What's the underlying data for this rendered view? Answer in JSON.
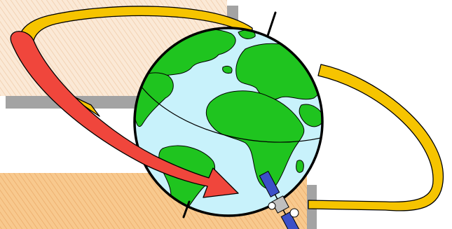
{
  "colors": {
    "background": "#ffffff",
    "panel_top": "#fbe9d6",
    "panel_top_hatch": "#efc9a6",
    "panel_bottom": "#f8c98e",
    "panel_bottom_hatch": "#eaa865",
    "panel_shadow": "#a3a3a3",
    "ocean": "#c8f2fb",
    "land": "#1fc41f",
    "outline": "#000000",
    "orbit_ribbon": "#f6c400",
    "arrow": "#f0463c",
    "satellite_panel": "#3c50c8",
    "satellite_body": "#bfbfbf",
    "satellite_dish": "#ffffff"
  },
  "icons": {
    "globe": "earth-globe-icon",
    "orbit": "orbit-ribbon-icon",
    "arrow": "rotation-arrow-icon",
    "satellite": "satellite-icon"
  }
}
